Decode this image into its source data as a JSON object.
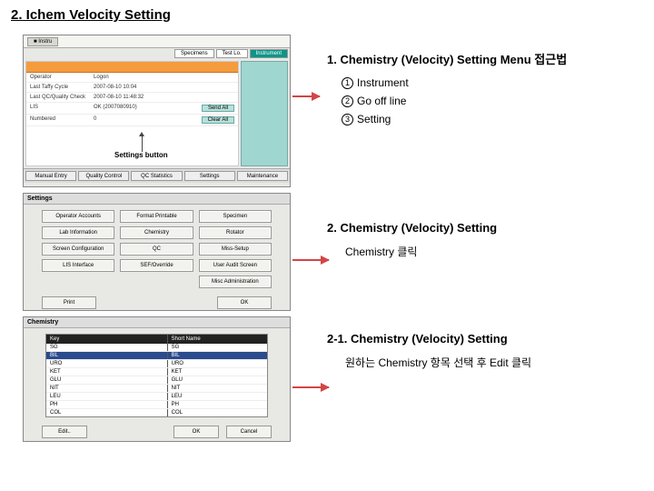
{
  "page_title": "2. Ichem Velocity Setting",
  "panel1": {
    "top_tab": "■ Instru",
    "tabs": [
      "Specimens",
      "Test Lo.",
      "Instrument"
    ],
    "orange_label": "",
    "rows": [
      {
        "label": "Operator",
        "value": "Logon",
        "btn": ""
      },
      {
        "label": "Last Taffy Cycle",
        "value": "2007-08-10 10:04"
      },
      {
        "label": "Last QC/Quality Check",
        "value": "2007-08-10 11:48:32"
      },
      {
        "label": "LIS",
        "value": "OK (2007080910)",
        "btn": "Send All"
      },
      {
        "label": "Numbered",
        "value": "0",
        "btn": "Clear All"
      }
    ],
    "settings_label": "Settings button",
    "bottom_tabs": [
      "Manual Entry",
      "Quality Control",
      "QC Statistics",
      "Settings",
      "Maintenance"
    ]
  },
  "panel2": {
    "header": "Settings",
    "buttons": [
      "Operator Accounts",
      "Format Printable",
      "Specimen",
      "Lab Information",
      "Chemistry",
      "Rotator",
      "Screen Configuration",
      "QC",
      "Miss-Setup",
      "LIS Interface",
      "SEF/Override",
      "User Audit Screen",
      "",
      "",
      "Misc Administration"
    ],
    "footer_print": "Print",
    "footer_ok": "OK"
  },
  "panel3": {
    "header": "Chemistry",
    "col1": "Key",
    "col2": "Short Name",
    "rows": [
      {
        "k": "SG",
        "v": "SG",
        "sel": false
      },
      {
        "k": "BIL",
        "v": "BIL",
        "sel": true
      },
      {
        "k": "URO",
        "v": "URO",
        "sel": false
      },
      {
        "k": "KET",
        "v": "KET",
        "sel": false
      },
      {
        "k": "GLU",
        "v": "GLU",
        "sel": false
      },
      {
        "k": "NIT",
        "v": "NIT",
        "sel": false
      },
      {
        "k": "LEU",
        "v": "LEU",
        "sel": false
      },
      {
        "k": "PH",
        "v": "PH",
        "sel": false
      },
      {
        "k": "COL",
        "v": "COL",
        "sel": false
      },
      {
        "k": "CLA",
        "v": "CLA",
        "sel": false
      }
    ],
    "edit": "Edit..",
    "ok": "OK",
    "cancel": "Cancel"
  },
  "text1": {
    "head": "1. Chemistry (Velocity) Setting Menu 접근법",
    "items": [
      "Instrument",
      "Go off line",
      "Setting"
    ]
  },
  "text2": {
    "head": "2. Chemistry (Velocity) Setting",
    "body": "Chemistry 클릭"
  },
  "text3": {
    "head": "2-1. Chemistry (Velocity) Setting",
    "body": "원하는 Chemistry 항목 선택 후  Edit 클릭"
  },
  "colors": {
    "accent_teal": "#0b9688",
    "orange": "#f49b3e",
    "arrow": "#d44545",
    "panel_bg": "#e8e8e4"
  }
}
